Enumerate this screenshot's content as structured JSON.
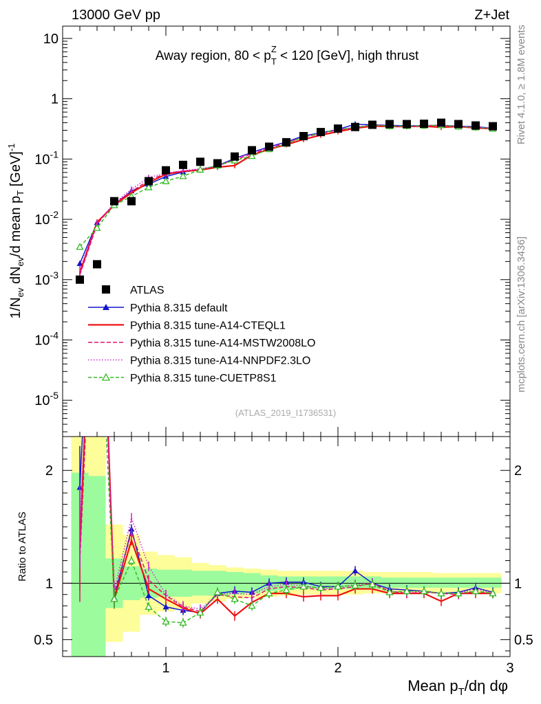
{
  "header": {
    "left": "13000 GeV pp",
    "right": "Z+Jet",
    "side_top": "Rivet 4.1.0, ≥ 1.8M events",
    "side_bottom": "mcplots.cern.ch [arXiv:1306.3436]"
  },
  "chart_data": {
    "type": "line",
    "title": "Away region, 80 < pT^Z < 120 [GeV], high thrust",
    "title_parts": {
      "pre": "Away region, 80 < p",
      "sub": "T",
      "sup": "Z",
      "post": " < 120 [GeV], high thrust"
    },
    "watermark": "(ATLAS_2019_I1736531)",
    "xlabel": "Mean pT/dη dφ",
    "xlabel_parts": {
      "pre": "Mean p",
      "sub": "T",
      "post": "/dη dφ"
    },
    "ylabel": "1/Nev dNev/d mean pT [GeV]^-1",
    "ylabel_parts": {
      "a": "1/N",
      "b": "ev",
      "c": " dN",
      "d": "ev",
      "e": "/d mean p",
      "f": "T",
      "g": " [GeV]",
      "h": "-1"
    },
    "ratio_ylabel": "Ratio to ATLAS",
    "xlim": [
      0.4,
      3.0
    ],
    "ylim_log": [
      2.5e-06,
      16
    ],
    "ratio_ylim": [
      0.35,
      2.3
    ],
    "x_ticks": [
      {
        "v": 1,
        "label": "1"
      },
      {
        "v": 2,
        "label": "2"
      },
      {
        "v": 3,
        "label": "3"
      }
    ],
    "y_ticks": [
      {
        "v": 10,
        "m": "10",
        "e": ""
      },
      {
        "v": 1,
        "m": "1",
        "e": ""
      },
      {
        "v": 0.1,
        "m": "10",
        "e": "-1"
      },
      {
        "v": 0.01,
        "m": "10",
        "e": "-2"
      },
      {
        "v": 0.001,
        "m": "10",
        "e": "-3"
      },
      {
        "v": 0.0001,
        "m": "10",
        "e": "-4"
      },
      {
        "v": 1e-05,
        "m": "10",
        "e": "-5"
      }
    ],
    "ratio_ticks": [
      {
        "v": 0.5,
        "label": "0.5"
      },
      {
        "v": 1,
        "label": "1"
      },
      {
        "v": 2,
        "label": "2"
      }
    ],
    "x": [
      0.5,
      0.6,
      0.7,
      0.8,
      0.9,
      1.0,
      1.1,
      1.2,
      1.3,
      1.4,
      1.5,
      1.6,
      1.7,
      1.8,
      1.9,
      2.0,
      2.1,
      2.2,
      2.3,
      2.4,
      2.5,
      2.6,
      2.7,
      2.8,
      2.9
    ],
    "data": {
      "name": "ATLAS",
      "values": [
        0.001,
        0.0018,
        0.02,
        0.02,
        0.043,
        0.065,
        0.08,
        0.09,
        0.085,
        0.11,
        0.14,
        0.16,
        0.19,
        0.24,
        0.28,
        0.32,
        0.34,
        0.37,
        0.38,
        0.38,
        0.385,
        0.4,
        0.38,
        0.36,
        0.35
      ]
    },
    "series": [
      {
        "name": "Pythia 8.315 default",
        "color": "#1515cc",
        "dash": "",
        "marker": "triangle-filled",
        "ratio": [
          1.85,
          4.9,
          0.87,
          1.48,
          0.89,
          0.79,
          0.76,
          0.74,
          0.91,
          0.93,
          0.92,
          1.0,
          1.01,
          1.01,
          0.97,
          0.97,
          1.11,
          1.0,
          0.95,
          0.94,
          0.93,
          0.91,
          0.92,
          0.96,
          0.92
        ]
      },
      {
        "name": "Pythia 8.315 tune-A14-CTEQL1",
        "color": "#ee1111",
        "dash": "",
        "marker": "none",
        "ratio": [
          1.3,
          5.0,
          0.86,
          1.38,
          0.95,
          0.86,
          0.78,
          0.73,
          0.86,
          0.71,
          0.83,
          0.91,
          0.91,
          0.88,
          0.89,
          0.89,
          0.95,
          0.95,
          0.91,
          0.91,
          0.91,
          0.84,
          0.91,
          0.91,
          0.91
        ]
      },
      {
        "name": "Pythia 8.315 tune-A14-MSTW2008LO",
        "color": "#e0106e",
        "dash": "6,3",
        "marker": "none",
        "ratio": [
          1.2,
          4.6,
          0.91,
          1.45,
          1.03,
          0.89,
          0.79,
          0.75,
          0.9,
          0.88,
          0.87,
          0.95,
          0.97,
          0.96,
          0.94,
          0.95,
          0.97,
          1.0,
          0.93,
          0.91,
          0.92,
          0.91,
          0.9,
          0.93,
          0.91
        ]
      },
      {
        "name": "Pythia 8.315 tune-A14-NNPDF2.3LO",
        "color": "#cc22cc",
        "dash": "1.5,2.5",
        "marker": "none",
        "ratio": [
          1.5,
          4.8,
          0.93,
          1.58,
          1.15,
          0.9,
          0.8,
          0.77,
          0.9,
          0.91,
          0.9,
          0.97,
          0.99,
          0.98,
          0.95,
          0.96,
          0.99,
          1.0,
          0.93,
          0.92,
          0.93,
          0.91,
          0.91,
          0.95,
          0.91
        ]
      },
      {
        "name": "Pythia 8.315 tune-CUETP8S1",
        "color": "#33bb22",
        "dash": "5,3",
        "marker": "triangle-open",
        "ratio": [
          3.5,
          4.0,
          0.86,
          1.2,
          0.79,
          0.66,
          0.65,
          0.74,
          0.92,
          0.86,
          0.8,
          0.91,
          0.94,
          0.97,
          0.96,
          0.97,
          0.98,
          0.99,
          0.92,
          0.93,
          0.93,
          0.91,
          0.91,
          0.93,
          0.91
        ]
      }
    ],
    "uncertainty_bands": {
      "x_edges": [
        0.45,
        0.55,
        0.65,
        0.75,
        0.85,
        0.95,
        1.05,
        1.15,
        1.25,
        1.35,
        1.45,
        1.55,
        1.65,
        1.75,
        1.85,
        1.95,
        2.05,
        2.15,
        2.25,
        2.35,
        2.45,
        2.55,
        2.65,
        2.75,
        2.85,
        2.95
      ],
      "stat": [
        [
          0.3,
          1.98
        ],
        [
          0.3,
          1.95
        ],
        [
          0.78,
          1.22
        ],
        [
          0.85,
          1.15
        ],
        [
          0.87,
          1.13
        ],
        [
          0.88,
          1.12
        ],
        [
          0.88,
          1.12
        ],
        [
          0.89,
          1.11
        ],
        [
          0.89,
          1.11
        ],
        [
          0.9,
          1.1
        ],
        [
          0.91,
          1.09
        ],
        [
          0.93,
          1.07
        ],
        [
          0.94,
          1.06
        ],
        [
          0.95,
          1.06
        ],
        [
          0.95,
          1.06
        ],
        [
          0.95,
          1.06
        ],
        [
          0.95,
          1.06
        ],
        [
          0.95,
          1.06
        ],
        [
          0.96,
          1.05
        ],
        [
          0.96,
          1.05
        ],
        [
          0.96,
          1.05
        ],
        [
          0.96,
          1.05
        ],
        [
          0.96,
          1.05
        ],
        [
          0.96,
          1.05
        ],
        [
          0.96,
          1.05
        ]
      ],
      "total": [
        [
          0.3,
          2.3
        ],
        [
          0.3,
          2.3
        ],
        [
          0.48,
          1.52
        ],
        [
          0.57,
          1.43
        ],
        [
          0.72,
          1.28
        ],
        [
          0.75,
          1.25
        ],
        [
          0.77,
          1.23
        ],
        [
          0.82,
          1.18
        ],
        [
          0.84,
          1.16
        ],
        [
          0.86,
          1.14
        ],
        [
          0.87,
          1.13
        ],
        [
          0.88,
          1.12
        ],
        [
          0.89,
          1.11
        ],
        [
          0.9,
          1.11
        ],
        [
          0.9,
          1.11
        ],
        [
          0.9,
          1.11
        ],
        [
          0.9,
          1.11
        ],
        [
          0.91,
          1.1
        ],
        [
          0.91,
          1.1
        ],
        [
          0.91,
          1.1
        ],
        [
          0.91,
          1.1
        ],
        [
          0.91,
          1.09
        ],
        [
          0.91,
          1.09
        ],
        [
          0.91,
          1.09
        ],
        [
          0.91,
          1.09
        ]
      ]
    },
    "colors": {
      "stat_band": "#9cfb9c",
      "total_band": "#fdfd9a",
      "data": "#000000"
    }
  }
}
